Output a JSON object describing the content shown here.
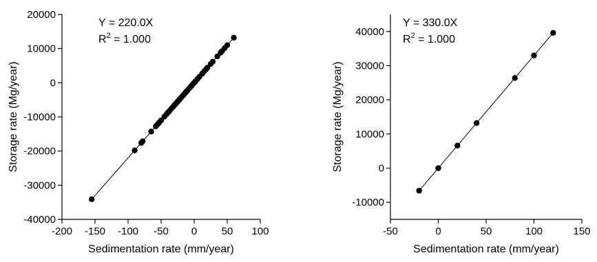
{
  "chart_data": [
    {
      "type": "scatter",
      "xlabel": "Sedimentation rate (mm/year)",
      "ylabel": "Storage rate (Mg/year)",
      "xlim": [
        -200,
        100
      ],
      "ylim": [
        -40000,
        20000
      ],
      "xticks": [
        -200,
        -150,
        -100,
        -50,
        0,
        50,
        100
      ],
      "yticks": [
        -40000,
        -30000,
        -20000,
        -10000,
        0,
        10000,
        20000
      ],
      "equation": "Y = 220.0X",
      "r2_prefix": "R",
      "r2_sup": "2",
      "r2_value": " = 1.000",
      "fit": {
        "slope": 220.0,
        "x_range": [
          -155,
          60
        ]
      },
      "x": [
        -155,
        -90,
        -80,
        -78,
        -65,
        -58,
        -55,
        -53,
        -50,
        -45,
        -42,
        -40,
        -38,
        -35,
        -32,
        -30,
        -28,
        -26,
        -24,
        -22,
        -20,
        -18,
        -16,
        -14,
        -12,
        -10,
        -8,
        -6,
        -4,
        -2,
        0,
        2,
        5,
        8,
        12,
        15,
        18,
        20,
        25,
        28,
        35,
        40,
        42,
        46,
        50,
        60
      ]
    },
    {
      "type": "scatter",
      "xlabel": "Sedimentation rate (mm/year)",
      "ylabel": "Storage rate (Mg/year)",
      "xlim": [
        -50,
        150
      ],
      "ylim": [
        -15000,
        45000
      ],
      "xticks": [
        -50,
        0,
        50,
        100,
        150
      ],
      "yticks": [
        -10000,
        0,
        10000,
        20000,
        30000,
        40000
      ],
      "equation": "Y = 330.0X",
      "r2_prefix": "R",
      "r2_sup": "2",
      "r2_value": " = 1.000",
      "fit": {
        "slope": 330.0,
        "x_range": [
          -20,
          120
        ]
      },
      "x": [
        -20,
        0,
        20,
        40,
        80,
        100,
        120
      ]
    }
  ]
}
